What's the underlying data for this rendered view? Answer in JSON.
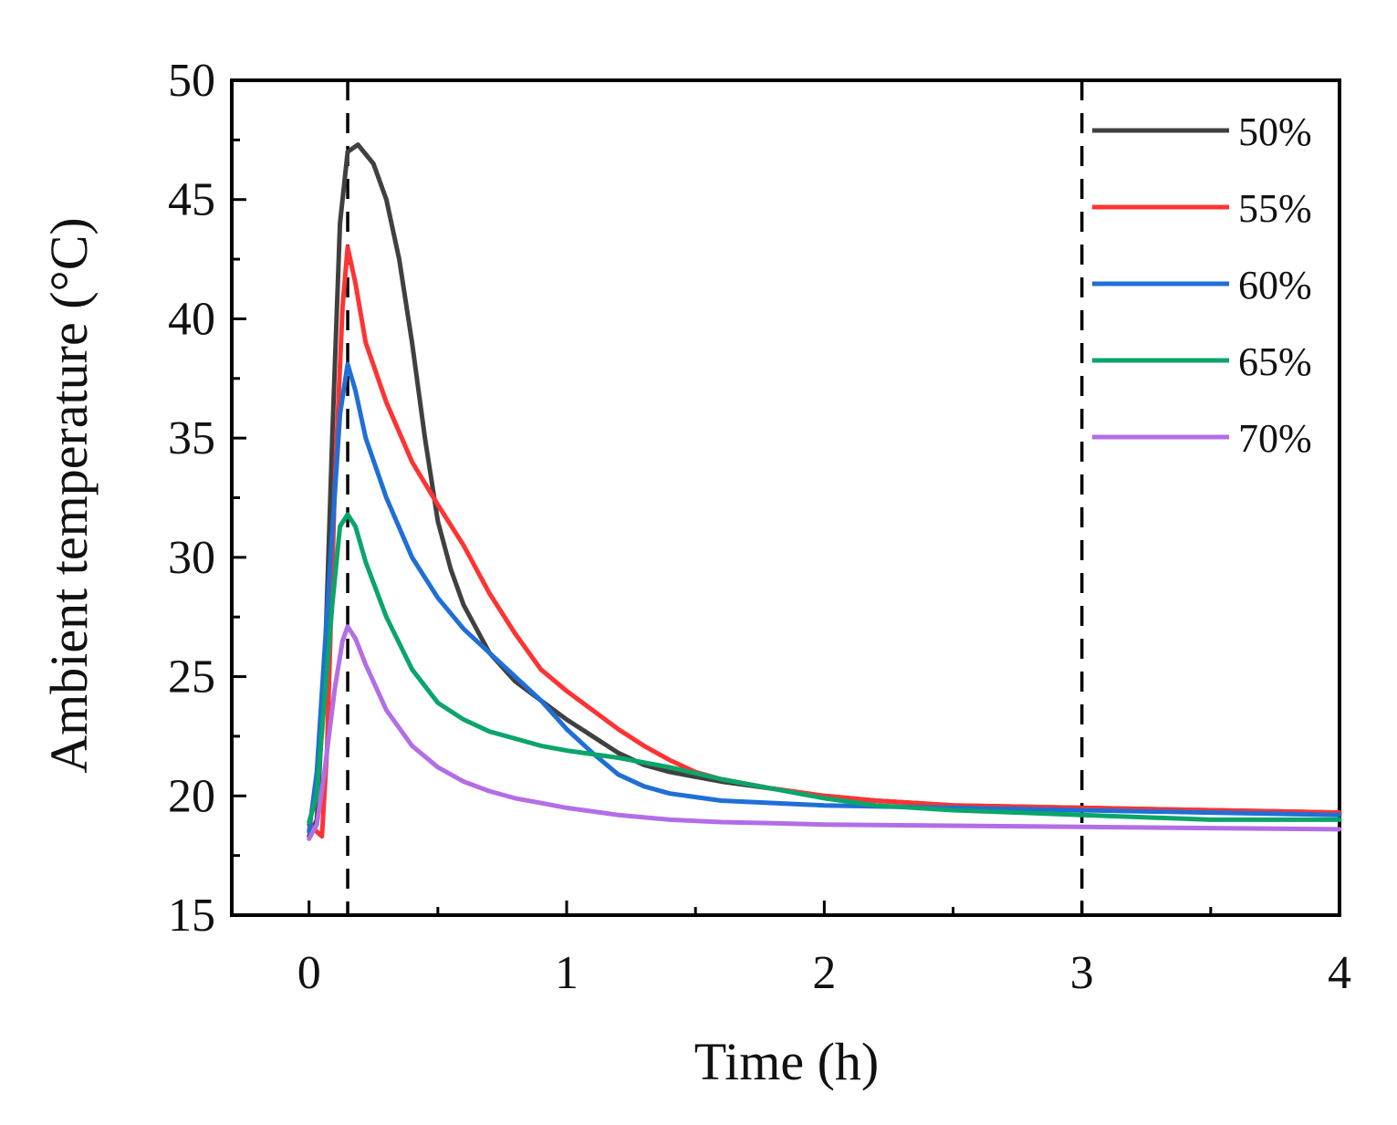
{
  "chart_data": {
    "type": "line",
    "xlabel": "Time (h)",
    "ylabel": "Ambient temperature (°C)",
    "xlim": [
      -0.3,
      4
    ],
    "ylim": [
      15,
      50
    ],
    "xticks": [
      0,
      1,
      2,
      3,
      4
    ],
    "yticks": [
      15,
      20,
      25,
      30,
      35,
      40,
      45,
      50
    ],
    "grid": false,
    "legend_position": "top-right",
    "reference_lines": [
      {
        "x": 0.15,
        "style": "dashed"
      },
      {
        "x": 3,
        "style": "dashed"
      }
    ],
    "series": [
      {
        "name": "50%",
        "color": "#404040",
        "points": [
          [
            0,
            18.3
          ],
          [
            0.03,
            19
          ],
          [
            0.06,
            25
          ],
          [
            0.09,
            35
          ],
          [
            0.12,
            44
          ],
          [
            0.15,
            47
          ],
          [
            0.19,
            47.3
          ],
          [
            0.25,
            46.5
          ],
          [
            0.3,
            45
          ],
          [
            0.35,
            42.5
          ],
          [
            0.4,
            39
          ],
          [
            0.45,
            35
          ],
          [
            0.5,
            31.5
          ],
          [
            0.55,
            29.5
          ],
          [
            0.6,
            28
          ],
          [
            0.7,
            26
          ],
          [
            0.8,
            24.8
          ],
          [
            0.9,
            24
          ],
          [
            1.0,
            23.2
          ],
          [
            1.1,
            22.5
          ],
          [
            1.2,
            21.8
          ],
          [
            1.3,
            21.3
          ],
          [
            1.4,
            21
          ],
          [
            1.5,
            20.8
          ],
          [
            1.6,
            20.6
          ],
          [
            1.8,
            20.3
          ],
          [
            2.0,
            20
          ],
          [
            2.2,
            19.8
          ],
          [
            2.5,
            19.6
          ],
          [
            3.0,
            19.5
          ],
          [
            3.5,
            19.4
          ],
          [
            4.0,
            19.3
          ]
        ]
      },
      {
        "name": "55%",
        "color": "#ff3333",
        "points": [
          [
            0,
            18.8
          ],
          [
            0.03,
            18.5
          ],
          [
            0.05,
            18.3
          ],
          [
            0.07,
            22
          ],
          [
            0.1,
            33
          ],
          [
            0.13,
            40.5
          ],
          [
            0.15,
            43
          ],
          [
            0.18,
            41.5
          ],
          [
            0.22,
            39
          ],
          [
            0.3,
            36.5
          ],
          [
            0.4,
            34
          ],
          [
            0.5,
            32.2
          ],
          [
            0.6,
            30.5
          ],
          [
            0.7,
            28.5
          ],
          [
            0.8,
            26.8
          ],
          [
            0.9,
            25.3
          ],
          [
            1.0,
            24.4
          ],
          [
            1.1,
            23.6
          ],
          [
            1.2,
            22.8
          ],
          [
            1.3,
            22.1
          ],
          [
            1.4,
            21.5
          ],
          [
            1.5,
            21
          ],
          [
            1.6,
            20.7
          ],
          [
            1.8,
            20.3
          ],
          [
            2.0,
            20
          ],
          [
            2.2,
            19.8
          ],
          [
            2.5,
            19.6
          ],
          [
            3.0,
            19.5
          ],
          [
            3.5,
            19.4
          ],
          [
            4.0,
            19.3
          ]
        ]
      },
      {
        "name": "60%",
        "color": "#1f6fd6",
        "points": [
          [
            0,
            18.5
          ],
          [
            0.03,
            21
          ],
          [
            0.06,
            26
          ],
          [
            0.09,
            31
          ],
          [
            0.12,
            36
          ],
          [
            0.15,
            38.1
          ],
          [
            0.18,
            37
          ],
          [
            0.22,
            35
          ],
          [
            0.3,
            32.5
          ],
          [
            0.4,
            30
          ],
          [
            0.5,
            28.3
          ],
          [
            0.6,
            27
          ],
          [
            0.7,
            26
          ],
          [
            0.8,
            25
          ],
          [
            0.9,
            24
          ],
          [
            1.0,
            22.8
          ],
          [
            1.1,
            21.8
          ],
          [
            1.2,
            20.9
          ],
          [
            1.3,
            20.4
          ],
          [
            1.4,
            20.1
          ],
          [
            1.6,
            19.8
          ],
          [
            1.8,
            19.7
          ],
          [
            2.0,
            19.6
          ],
          [
            2.5,
            19.5
          ],
          [
            3.0,
            19.4
          ],
          [
            3.5,
            19.3
          ],
          [
            4.0,
            19.2
          ]
        ]
      },
      {
        "name": "65%",
        "color": "#0aa56a",
        "points": [
          [
            0,
            18.9
          ],
          [
            0.03,
            20
          ],
          [
            0.06,
            24
          ],
          [
            0.09,
            28
          ],
          [
            0.12,
            31.3
          ],
          [
            0.15,
            31.8
          ],
          [
            0.18,
            31.3
          ],
          [
            0.22,
            29.8
          ],
          [
            0.3,
            27.5
          ],
          [
            0.4,
            25.3
          ],
          [
            0.5,
            23.9
          ],
          [
            0.6,
            23.2
          ],
          [
            0.7,
            22.7
          ],
          [
            0.8,
            22.4
          ],
          [
            0.9,
            22.1
          ],
          [
            1.0,
            21.9
          ],
          [
            1.2,
            21.6
          ],
          [
            1.4,
            21.2
          ],
          [
            1.6,
            20.7
          ],
          [
            1.8,
            20.3
          ],
          [
            2.0,
            19.9
          ],
          [
            2.2,
            19.6
          ],
          [
            2.5,
            19.4
          ],
          [
            3.0,
            19.2
          ],
          [
            3.5,
            19
          ],
          [
            4.0,
            19
          ]
        ]
      },
      {
        "name": "70%",
        "color": "#b36ee6",
        "points": [
          [
            0,
            18.2
          ],
          [
            0.03,
            18.8
          ],
          [
            0.06,
            21
          ],
          [
            0.1,
            24.5
          ],
          [
            0.13,
            26.5
          ],
          [
            0.15,
            27.1
          ],
          [
            0.18,
            26.6
          ],
          [
            0.22,
            25.5
          ],
          [
            0.3,
            23.6
          ],
          [
            0.4,
            22.1
          ],
          [
            0.5,
            21.2
          ],
          [
            0.6,
            20.6
          ],
          [
            0.7,
            20.2
          ],
          [
            0.8,
            19.9
          ],
          [
            0.9,
            19.7
          ],
          [
            1.0,
            19.5
          ],
          [
            1.2,
            19.2
          ],
          [
            1.4,
            19
          ],
          [
            1.6,
            18.9
          ],
          [
            1.8,
            18.85
          ],
          [
            2.0,
            18.8
          ],
          [
            2.5,
            18.75
          ],
          [
            3.0,
            18.7
          ],
          [
            3.5,
            18.65
          ],
          [
            4.0,
            18.6
          ]
        ]
      }
    ]
  }
}
